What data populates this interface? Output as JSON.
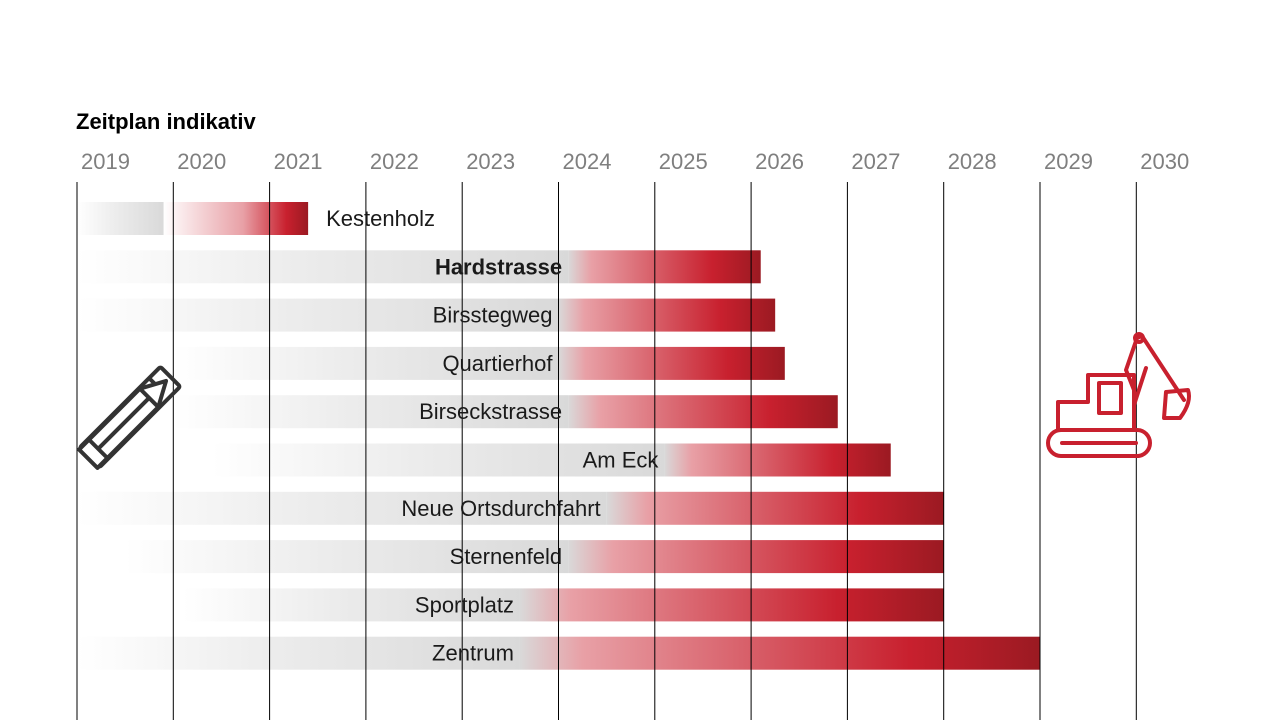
{
  "chart_data": {
    "type": "bar",
    "orientation": "horizontal-gantt",
    "title": "Zeitplan indikativ",
    "x_ticks": [
      "2019",
      "2020",
      "2021",
      "2022",
      "2023",
      "2024",
      "2025",
      "2026",
      "2027",
      "2028",
      "2029",
      "2030"
    ],
    "xlim": [
      2019,
      2030
    ],
    "grid": true,
    "tasks": [
      {
        "label": "Kestenholz",
        "bold": false,
        "label_outside": true,
        "start": 2019.0,
        "planning_end": 2019.9,
        "construction_start": 2019.9,
        "end": 2021.4
      },
      {
        "label": "Hardstrasse",
        "bold": true,
        "label_outside": false,
        "start": 2019.0,
        "planning_end": 2024.1,
        "construction_start": 2024.1,
        "end": 2026.1
      },
      {
        "label": "Birsstegweg",
        "bold": false,
        "label_outside": false,
        "start": 2019.0,
        "planning_end": 2024.0,
        "construction_start": 2024.0,
        "end": 2026.25
      },
      {
        "label": "Quartierhof",
        "bold": false,
        "label_outside": false,
        "start": 2020.0,
        "planning_end": 2024.0,
        "construction_start": 2024.0,
        "end": 2026.35
      },
      {
        "label": "Birseckstrasse",
        "bold": false,
        "label_outside": false,
        "start": 2020.0,
        "planning_end": 2024.1,
        "construction_start": 2024.1,
        "end": 2026.9
      },
      {
        "label": "Am Eck",
        "bold": false,
        "label_outside": false,
        "start": 2020.4,
        "planning_end": 2025.1,
        "construction_start": 2025.1,
        "end": 2027.45
      },
      {
        "label": "Neue Ortsdurchfahrt",
        "bold": false,
        "label_outside": false,
        "start": 2019.0,
        "planning_end": 2024.5,
        "construction_start": 2024.5,
        "end": 2028.0
      },
      {
        "label": "Sternenfeld",
        "bold": false,
        "label_outside": false,
        "start": 2019.5,
        "planning_end": 2024.1,
        "construction_start": 2024.1,
        "end": 2028.0
      },
      {
        "label": "Sportplatz",
        "bold": false,
        "label_outside": false,
        "start": 2020.1,
        "planning_end": 2023.6,
        "construction_start": 2023.6,
        "end": 2028.0
      },
      {
        "label": "Zentrum",
        "bold": false,
        "label_outside": false,
        "start": 2019.0,
        "planning_end": 2023.6,
        "construction_start": 2023.6,
        "end": 2029.0
      }
    ]
  },
  "colors": {
    "planning": "#d9d9d9",
    "construction_light": "#e8a0a6",
    "construction_mid": "#c8202e",
    "construction_dark": "#9b1a22",
    "grid": "#000000",
    "tick_label": "#7f7f7f",
    "excavator": "#c8202e",
    "tools": "#333333"
  },
  "icons": {
    "planning": "pencil-ruler-icon",
    "construction": "excavator-icon"
  }
}
